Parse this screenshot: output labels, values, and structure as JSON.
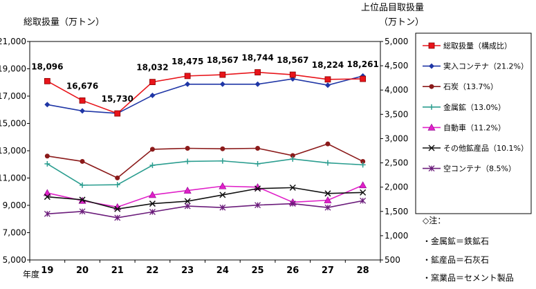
{
  "chart_data": {
    "type": "line",
    "title_left": "総取扱量（万トン）",
    "title_right_line1": "上位品目取扱量",
    "title_right_line2": "（万トン）",
    "xlabel": "年度",
    "categories": [
      "19",
      "20",
      "21",
      "22",
      "23",
      "24",
      "25",
      "26",
      "27",
      "28"
    ],
    "y_left": {
      "min": 5000,
      "max": 21000,
      "ticks": [
        "5,000",
        "7,000",
        "9,000",
        "11,000",
        "13,000",
        "15,000",
        "17,000",
        "19,000",
        "21,000"
      ]
    },
    "y_right": {
      "min": 500,
      "max": 5000,
      "ticks": [
        "500",
        "1,000",
        "1,500",
        "2,000",
        "2,500",
        "3,000",
        "3,500",
        "4,000",
        "4,500",
        "5,000"
      ]
    },
    "total": {
      "name": "総取扱量（構成比）",
      "color": "#e8141a",
      "marker": "square",
      "values": [
        18096,
        16676,
        15730,
        18032,
        18475,
        18567,
        18744,
        18567,
        18224,
        18261
      ],
      "labels": [
        "18,096",
        "16,676",
        "15,730",
        "18,032",
        "18,475",
        "18,567",
        "18,744",
        "18,567",
        "18,224",
        "18,261"
      ]
    },
    "series": [
      {
        "name": "実入コンテナ（21.2%）",
        "color": "#1f36a6",
        "marker": "diamond",
        "values": [
          3700,
          3570,
          3520,
          3890,
          4120,
          4120,
          4120,
          4230,
          4100,
          4290
        ]
      },
      {
        "name": "石炭（13.7%）",
        "color": "#8b1a1a",
        "marker": "circle",
        "values": [
          2640,
          2530,
          2190,
          2780,
          2800,
          2790,
          2800,
          2650,
          2890,
          2530
        ]
      },
      {
        "name": "金属鉱（13.0%）",
        "color": "#2a9d8f",
        "marker": "plus",
        "values": [
          2480,
          2040,
          2050,
          2450,
          2530,
          2540,
          2480,
          2580,
          2500,
          2460
        ]
      },
      {
        "name": "自動車（11.2%）",
        "color": "#e020c8",
        "marker": "triangle",
        "values": [
          1880,
          1720,
          1590,
          1840,
          1930,
          2020,
          2000,
          1690,
          1730,
          2040
        ]
      },
      {
        "name": "その他鉱産品（10.1%）",
        "color": "#111111",
        "marker": "x",
        "values": [
          1800,
          1740,
          1550,
          1660,
          1710,
          1840,
          1970,
          1990,
          1870,
          1890
        ]
      },
      {
        "name": "空コンテナ（8.5%）",
        "color": "#6a1b7a",
        "marker": "star",
        "values": [
          1450,
          1500,
          1370,
          1490,
          1610,
          1580,
          1630,
          1660,
          1580,
          1720
        ]
      }
    ]
  },
  "notes": {
    "header": "◇注：",
    "items": [
      "・金属鉱＝鉄鉱石",
      "・鉱産品＝石灰石",
      "・窯業品＝セメント製品"
    ]
  }
}
